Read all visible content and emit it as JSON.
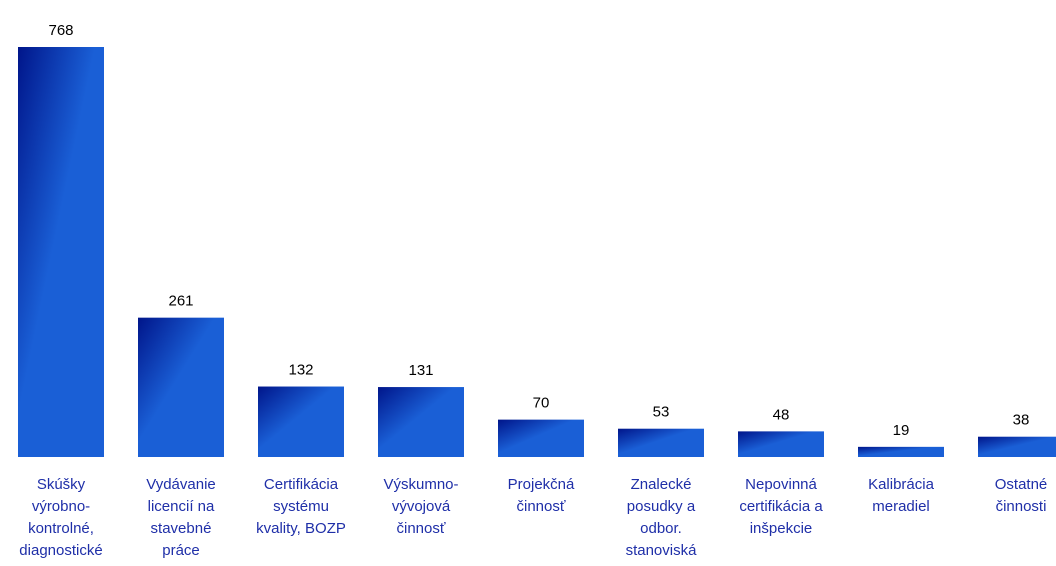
{
  "chart_data": {
    "type": "bar",
    "categories": [
      [
        "Skúšky",
        "výrobno-",
        "kontrolné,",
        "diagnostické"
      ],
      [
        "Vydávanie",
        "licencií na",
        "stavebné",
        "práce"
      ],
      [
        "Certifikácia",
        "systému",
        "kvality, BOZP"
      ],
      [
        "Výskumno-",
        "vývojová",
        "činnosť"
      ],
      [
        "Projekčná",
        "činnosť"
      ],
      [
        "Znalecké",
        "posudky a",
        "odbor.",
        "stanoviská"
      ],
      [
        "Nepovinná",
        "certifikácia a",
        "inšpekcie"
      ],
      [
        "Kalibrácia",
        "meradiel"
      ],
      [
        "Ostatné",
        "činnosti"
      ]
    ],
    "values": [
      768,
      261,
      132,
      131,
      70,
      53,
      48,
      19,
      38
    ],
    "labels": [
      "768",
      "261",
      "132",
      "131",
      "70",
      "53",
      "48",
      "19",
      "38"
    ],
    "title": "",
    "xlabel": "",
    "ylabel": "",
    "ylim": [
      0,
      768
    ],
    "grid": false,
    "legend": "none",
    "colors": {
      "bar_dark": "#00158a",
      "bar_light": "#1a5fd6",
      "category_text": "#1f2fa8",
      "value_text": "#000000"
    }
  }
}
